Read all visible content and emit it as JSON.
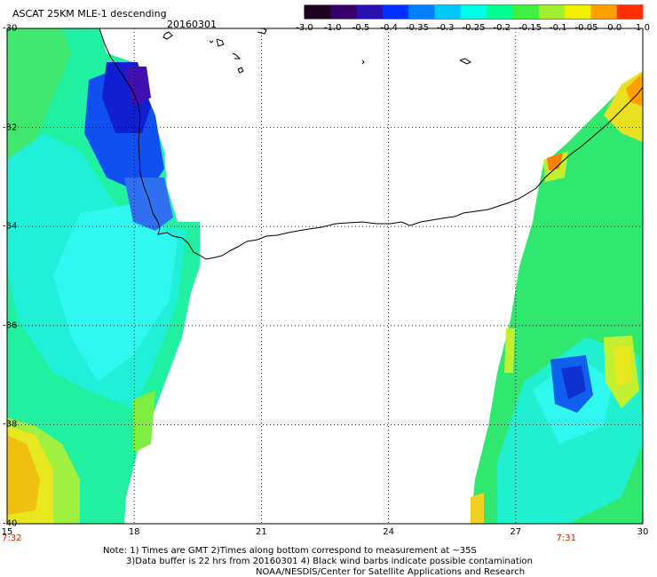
{
  "title": "ASCAT 25KM MLE-1 descending",
  "date": "20160301",
  "colorbar": {
    "tick_labels": [
      "-3.0",
      "-1.0",
      "-0.5",
      "-0.4",
      "-0.35",
      "-0.3",
      "-0.25",
      "-0.2",
      "-0.15",
      "-0.1",
      "-0.05",
      "0.0",
      "1.0"
    ],
    "colors": [
      "#200020",
      "#3a006a",
      "#2a10b0",
      "#0030ff",
      "#0080ff",
      "#00c8ff",
      "#00ffe8",
      "#00ff90",
      "#40f040",
      "#a0f030",
      "#f0f000",
      "#ffa000",
      "#ff3000"
    ]
  },
  "map": {
    "lon_ticks": [
      "15",
      "18",
      "21",
      "24",
      "27",
      "30"
    ],
    "lat_ticks": [
      "-30",
      "-32",
      "-34",
      "-36",
      "-38",
      "-40"
    ],
    "time_labels": [
      {
        "text": "7:32",
        "lon": 15
      },
      {
        "text": "7:31",
        "lon": 28
      }
    ],
    "grid": true
  },
  "notes": [
    "Note:  1) Times are GMT  2)Times along bottom correspond to measurement at ~35S",
    "3)Data buffer is 22 hrs from 20160301  4) Black wind barbs indicate possible contamination",
    "NOAA/NESDIS/Center for Satellite Applications and Research"
  ]
}
